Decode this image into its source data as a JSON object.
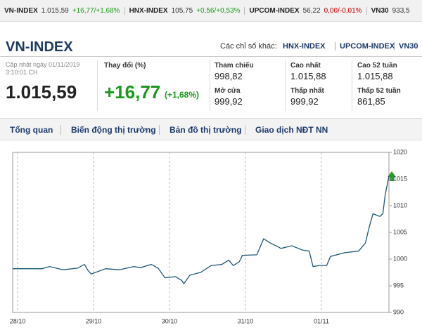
{
  "ticker": [
    {
      "name": "VN-INDEX",
      "value": "1.015,59",
      "change": "+16,77/+1,68%"
    },
    {
      "name": "HNX-INDEX",
      "value": "105,75",
      "change": "+0,56/+0,53%"
    },
    {
      "name": "UPCOM-INDEX",
      "value": "56,22",
      "change": "0,00/-0,01%"
    },
    {
      "name": "VN30",
      "value": "933,5"
    }
  ],
  "header": {
    "title": "VN-INDEX",
    "other_label": "Các chỉ số khác:",
    "other_links": [
      "HNX-INDEX",
      "UPCOM-INDEX",
      "VN30"
    ]
  },
  "update": {
    "date_label": "Cập nhật ngày 01/11/2019",
    "time": "3:10:01 CH"
  },
  "index_value": "1.015,59",
  "change": {
    "label": "Thay đổi (%)",
    "value": "+16,77",
    "percent": "(+1,68%)"
  },
  "stats": [
    {
      "label": "Tham chiếu",
      "value": "998,82"
    },
    {
      "label": "Mở cửa",
      "value": "999,92"
    },
    {
      "label": "Cao nhất",
      "value": "1.015,88"
    },
    {
      "label": "Thấp nhất",
      "value": "999,92"
    },
    {
      "label": "Cao 52 tuần",
      "value": "1.015,88"
    },
    {
      "label": "Thấp 52 tuần",
      "value": "861,85"
    }
  ],
  "tabs": [
    "Tổng quan",
    "Biến động thị trường",
    "Bản đồ thị trường",
    "Giao dịch NĐT NN"
  ],
  "chart_data": {
    "type": "line",
    "color": "#1d5875",
    "x": [
      -0.065,
      0.32,
      0.42,
      0.6,
      0.79,
      0.88,
      0.93,
      0.97,
      1.16,
      1.34,
      1.53,
      1.62,
      1.76,
      1.85,
      1.94,
      2.08,
      2.16,
      2.19,
      2.27,
      2.41,
      2.55,
      2.69,
      2.78,
      2.84,
      2.92,
      2.96,
      3.15,
      3.24,
      3.33,
      3.47,
      3.61,
      3.75,
      3.84,
      3.89,
      3.98,
      4.07,
      4.12,
      4.31,
      4.49,
      4.58,
      4.63,
      4.68,
      4.77,
      4.81,
      4.84,
      4.89
    ],
    "values": [
      998.2,
      998.2,
      998.6,
      998.0,
      998.3,
      999.0,
      997.8,
      997.2,
      998.2,
      998.0,
      998.6,
      998.4,
      999.0,
      998.3,
      996.5,
      996.7,
      996.0,
      995.4,
      997.0,
      997.5,
      998.8,
      999.0,
      999.8,
      998.8,
      999.5,
      1000.7,
      1000.8,
      1003.8,
      1003.0,
      1002.0,
      1002.5,
      1001.7,
      1001.5,
      998.6,
      998.8,
      998.8,
      1000.5,
      1001.2,
      1001.5,
      1003.0,
      1006.0,
      1008.5,
      1008.0,
      1008.5,
      1012.0,
      1015.59
    ],
    "xlim": [
      -0.065,
      4.89
    ],
    "xticks": [
      {
        "value": 0,
        "label": "28/10"
      },
      {
        "value": 1,
        "label": "29/10"
      },
      {
        "value": 2,
        "label": "30/10"
      },
      {
        "value": 3,
        "label": "31/10"
      },
      {
        "value": 4,
        "label": "01/11"
      }
    ],
    "ylim": [
      990,
      1020
    ],
    "yticks": [
      990,
      995,
      1000,
      1005,
      1010,
      1015,
      1020
    ]
  }
}
